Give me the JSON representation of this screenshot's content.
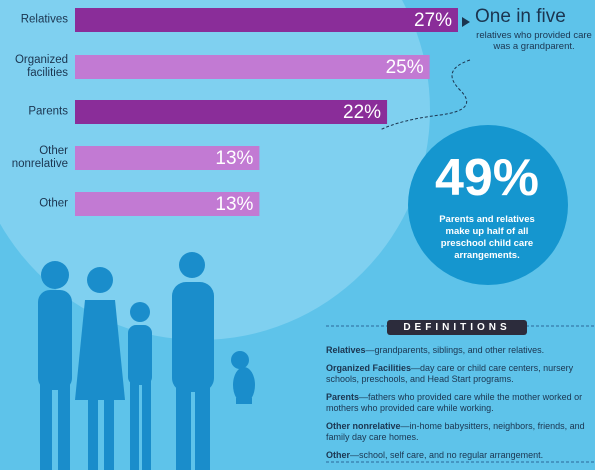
{
  "chart_data": {
    "type": "bar",
    "orientation": "horizontal",
    "categories": [
      "Relatives",
      "Organized facilities",
      "Parents",
      "Other nonrelative",
      "Other"
    ],
    "values": [
      27,
      25,
      22,
      13,
      13
    ],
    "value_labels": [
      "27%",
      "25%",
      "22%",
      "13%",
      "13%"
    ],
    "colors": [
      "#8a2d99",
      "#c27ad3",
      "#8a2d99",
      "#c27ad3",
      "#c27ad3"
    ],
    "annotations": {
      "callout_title": "One in five",
      "callout_text": "relatives who provided care was a grandparent.",
      "big_number": "49%",
      "big_text": "Parents and relatives make up half of all preschool child care arrangements."
    }
  },
  "definitions": {
    "title": "DEFINITIONS",
    "items": [
      {
        "term": "Relatives",
        "text": "—grandparents, siblings, and other relatives."
      },
      {
        "term": "Organized Facilities",
        "text": "—day care or child care centers, nursery schools, preschools, and Head Start programs."
      },
      {
        "term": "Parents",
        "text": "—fathers who provided care while the mother worked or mothers who provided care while working."
      },
      {
        "term": "Other nonrelative",
        "text": "—in-home babysitters, neighbors, friends, and family day care homes."
      },
      {
        "term": "Other",
        "text": "—school, self care, and no regular arrangement."
      }
    ]
  }
}
